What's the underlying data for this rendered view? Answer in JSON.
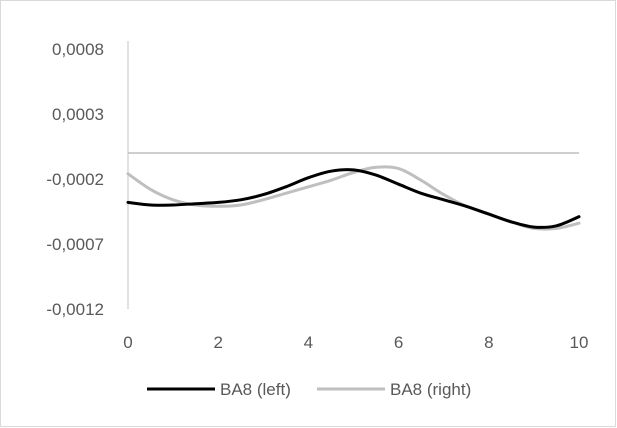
{
  "chart_data": {
    "type": "line",
    "title": "",
    "xlabel": "",
    "ylabel": "",
    "xlim": [
      0,
      10
    ],
    "ylim": [
      -0.0012,
      0.0008
    ],
    "x_ticks": [
      0,
      2,
      4,
      6,
      8,
      10
    ],
    "x_tick_labels": [
      "0",
      "2",
      "4",
      "6",
      "8",
      "10"
    ],
    "y_ticks": [
      0.0008,
      0.0003,
      -0.0002,
      -0.0007,
      -0.0012
    ],
    "y_tick_labels": [
      "0,0008",
      "0,0003",
      "-0,0002",
      "-0,0007",
      "-0,0012"
    ],
    "grid": false,
    "legend_position": "bottom",
    "series": [
      {
        "name": "BA8 (left)",
        "color": "#000000",
        "x": [
          0,
          0.5,
          1,
          1.5,
          2,
          2.5,
          3,
          3.5,
          4,
          4.5,
          5,
          5.5,
          6,
          6.5,
          7,
          7.5,
          8,
          8.5,
          9,
          9.5,
          10
        ],
        "y": [
          -0.00038,
          -0.0004,
          -0.0004,
          -0.00039,
          -0.00038,
          -0.00036,
          -0.00032,
          -0.00026,
          -0.00019,
          -0.00014,
          -0.00013,
          -0.00017,
          -0.00024,
          -0.00031,
          -0.00036,
          -0.00041,
          -0.00047,
          -0.00053,
          -0.00057,
          -0.00056,
          -0.00049
        ]
      },
      {
        "name": "BA8 (right)",
        "color": "#bfbfbf",
        "x": [
          0,
          0.5,
          1,
          1.5,
          2,
          2.5,
          3,
          3.5,
          4,
          4.5,
          5,
          5.5,
          6,
          6.5,
          7,
          7.5,
          8,
          8.5,
          9,
          9.5,
          10
        ],
        "y": [
          -0.00016,
          -0.00028,
          -0.00036,
          -0.0004,
          -0.00041,
          -0.0004,
          -0.00036,
          -0.00031,
          -0.00026,
          -0.00021,
          -0.00015,
          -0.00011,
          -0.00012,
          -0.00021,
          -0.00032,
          -0.00041,
          -0.00047,
          -0.00053,
          -0.00058,
          -0.00058,
          -0.00054
        ]
      }
    ],
    "reference_line": {
      "y": 0,
      "color": "#bfbfbf"
    }
  }
}
